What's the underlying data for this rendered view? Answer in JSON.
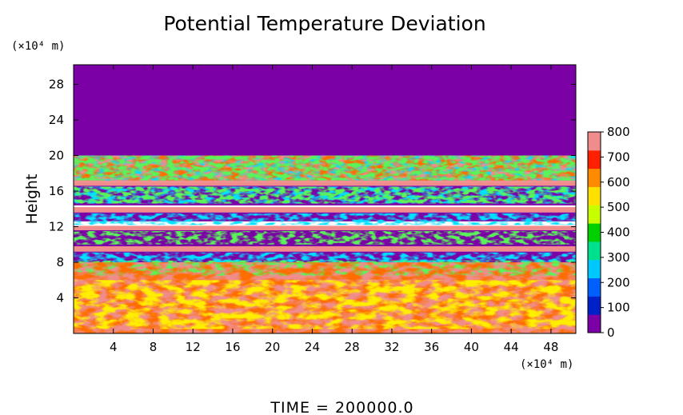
{
  "chart_data": {
    "type": "heatmap",
    "title": "Potential Temperature Deviation",
    "xlabel": "",
    "ylabel": "Height",
    "x_unit": "(×10⁴ m)",
    "y_unit": "(×10⁴ m)",
    "x_ticks": [
      4,
      8,
      12,
      16,
      20,
      24,
      28,
      32,
      36,
      40,
      44,
      48
    ],
    "y_ticks": [
      4,
      8,
      12,
      16,
      20,
      24,
      28
    ],
    "xlim": [
      0,
      50.5
    ],
    "ylim": [
      0,
      30.2
    ],
    "colorbar": {
      "ticks": [
        0,
        100,
        200,
        300,
        400,
        500,
        600,
        700,
        800
      ],
      "range": [
        0,
        800
      ],
      "colors": [
        "#7b00a6",
        "#0020c8",
        "#0060ff",
        "#00c8ff",
        "#00e08c",
        "#00d000",
        "#c8ff00",
        "#ffe000",
        "#ff8c00",
        "#ff2000",
        "#f08c8c"
      ]
    },
    "regions": [
      {
        "name": "stratosphere",
        "y": [
          20,
          30.2
        ],
        "value": 0
      },
      {
        "name": "upper-warm-band",
        "y": [
          17,
          20
        ],
        "value": 800
      },
      {
        "name": "thin-band",
        "y": [
          16.6,
          17
        ],
        "value": 800
      },
      {
        "name": "mid-cold-layer-upper",
        "y": [
          14.4,
          16.6
        ],
        "value": 0
      },
      {
        "name": "warm-band",
        "y": [
          13.6,
          14.2
        ],
        "value": 800
      },
      {
        "name": "mid-cold-layer",
        "y": [
          12.6,
          13.6
        ],
        "value": 0
      },
      {
        "name": "warm-band",
        "y": [
          11.6,
          12.1
        ],
        "value": 800
      },
      {
        "name": "mid-cold-layer-lower",
        "y": [
          9.8,
          11.6
        ],
        "value": 0
      },
      {
        "name": "warm-band",
        "y": [
          9.2,
          9.8
        ],
        "value": 800
      },
      {
        "name": "boundary-cold-layer",
        "y": [
          8,
          9.2
        ],
        "value": 0
      },
      {
        "name": "lower-warm-region",
        "y": [
          0,
          8
        ],
        "value": 800
      }
    ],
    "grid": false,
    "legend": "colorbar-right"
  },
  "footer": {
    "time_label": "TIME  =  200000.0"
  }
}
